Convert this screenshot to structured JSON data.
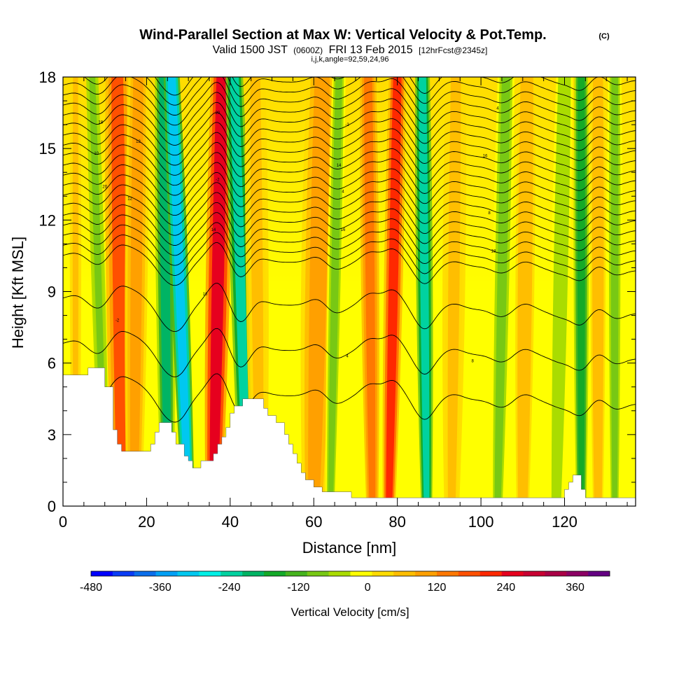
{
  "title": "Wind-Parallel Section at Max W: Vertical Velocity & Pot.Temp.",
  "copyright": "(C)",
  "subtitle": {
    "valid": "Valid 1500 JST",
    "utc": "(0600Z)",
    "date": "FRI 13 Feb 2015",
    "forecast": "[12hrFcst@2345z]"
  },
  "params": "i,j,k,angle=92,59,24,96",
  "colors": {
    "palette": [
      "#0000ff",
      "#0a3cf5",
      "#0a6eeb",
      "#00a0f5",
      "#00c8f0",
      "#00f0e6",
      "#00d2a0",
      "#00b464",
      "#14aa28",
      "#46b41e",
      "#78c814",
      "#aadc00",
      "#ffff00",
      "#ffdc00",
      "#ffbe00",
      "#ffa000",
      "#ff7800",
      "#ff5000",
      "#ff2800",
      "#e6001e",
      "#c80032",
      "#aa0046",
      "#8c0064",
      "#640082"
    ],
    "terrain": "#ffffff"
  },
  "chart_data": {
    "type": "heatmap",
    "xlabel": "Distance [nm]",
    "ylabel": "Height [Kft MSL]",
    "xlim": [
      0,
      137
    ],
    "ylim": [
      0,
      18
    ],
    "x_ticks": [
      0,
      20,
      40,
      60,
      80,
      100,
      120
    ],
    "y_ticks": [
      0,
      3,
      6,
      9,
      12,
      15,
      18
    ],
    "colorbar": {
      "label": "Vertical Velocity [cm/s]",
      "min": -480,
      "max": 420,
      "step": 37.5,
      "tick_values": [
        -480,
        -360,
        -240,
        -120,
        0,
        120,
        240,
        360
      ]
    },
    "vertical_velocity_bands": [
      {
        "x": 3,
        "x_top": 3,
        "width": 1.5,
        "w": 60
      },
      {
        "x": 10,
        "x_top": 7,
        "width": 1.8,
        "w": -100
      },
      {
        "x": 14,
        "x_top": 13,
        "width": 3.5,
        "w": 160
      },
      {
        "x": 17,
        "x_top": 18,
        "width": 3.0,
        "w": 90
      },
      {
        "x": 25,
        "x_top": 24,
        "width": 2.5,
        "w": -200
      },
      {
        "x": 30,
        "x_top": 26,
        "width": 2.4,
        "w": -330
      },
      {
        "x": 36,
        "x_top": 38,
        "width": 3.2,
        "w": 260
      },
      {
        "x": 44,
        "x_top": 41,
        "width": 2.6,
        "w": -230
      },
      {
        "x": 47,
        "x_top": 46,
        "width": 3.0,
        "w": 60
      },
      {
        "x": 60,
        "x_top": 62,
        "width": 4.5,
        "w": 90
      },
      {
        "x": 64,
        "x_top": 66,
        "width": 2.0,
        "w": -90
      },
      {
        "x": 74,
        "x_top": 73,
        "width": 2.4,
        "w": 150
      },
      {
        "x": 78,
        "x_top": 80,
        "width": 2.5,
        "w": 200
      },
      {
        "x": 87,
        "x_top": 86,
        "width": 2.2,
        "w": -240
      },
      {
        "x": 93,
        "x_top": 94,
        "width": 3.0,
        "w": 60
      },
      {
        "x": 104,
        "x_top": 106,
        "width": 2.5,
        "w": -80
      },
      {
        "x": 110,
        "x_top": 111,
        "width": 2.5,
        "w": 80
      },
      {
        "x": 118,
        "x_top": 120,
        "width": 2.5,
        "w": -60
      },
      {
        "x": 124,
        "x_top": 124,
        "width": 2.0,
        "w": -160
      },
      {
        "x": 128,
        "x_top": 128,
        "width": 2.0,
        "w": 80
      },
      {
        "x": 132,
        "x_top": 132,
        "width": 2.0,
        "w": -80
      }
    ],
    "terrain_height": [
      [
        0,
        5.5
      ],
      [
        6,
        5.5
      ],
      [
        6,
        5.8
      ],
      [
        10,
        5.8
      ],
      [
        10,
        5.0
      ],
      [
        12,
        5.0
      ],
      [
        12,
        3.2
      ],
      [
        13,
        3.2
      ],
      [
        13,
        2.6
      ],
      [
        14,
        2.6
      ],
      [
        14,
        2.3
      ],
      [
        21,
        2.3
      ],
      [
        21,
        2.6
      ],
      [
        22,
        2.6
      ],
      [
        22,
        3.1
      ],
      [
        23,
        3.1
      ],
      [
        23,
        3.5
      ],
      [
        26,
        3.5
      ],
      [
        26,
        3.1
      ],
      [
        27,
        3.1
      ],
      [
        27,
        2.6
      ],
      [
        29,
        2.6
      ],
      [
        29,
        2.1
      ],
      [
        30,
        2.1
      ],
      [
        30,
        1.9
      ],
      [
        31,
        1.9
      ],
      [
        31,
        1.6
      ],
      [
        33,
        1.6
      ],
      [
        33,
        1.9
      ],
      [
        36,
        1.9
      ],
      [
        36,
        2.2
      ],
      [
        37,
        2.2
      ],
      [
        37,
        2.6
      ],
      [
        38,
        2.6
      ],
      [
        38,
        2.9
      ],
      [
        39,
        2.9
      ],
      [
        39,
        3.3
      ],
      [
        40,
        3.3
      ],
      [
        40,
        3.9
      ],
      [
        41,
        3.9
      ],
      [
        41,
        4.2
      ],
      [
        43,
        4.2
      ],
      [
        43,
        4.5
      ],
      [
        48,
        4.5
      ],
      [
        48,
        4.1
      ],
      [
        49,
        4.1
      ],
      [
        49,
        3.8
      ],
      [
        51,
        3.8
      ],
      [
        51,
        3.5
      ],
      [
        53,
        3.5
      ],
      [
        53,
        3.0
      ],
      [
        54,
        3.0
      ],
      [
        54,
        2.6
      ],
      [
        55,
        2.6
      ],
      [
        55,
        2.2
      ],
      [
        56,
        2.2
      ],
      [
        56,
        1.8
      ],
      [
        57,
        1.8
      ],
      [
        57,
        1.4
      ],
      [
        58,
        1.4
      ],
      [
        58,
        1.1
      ],
      [
        60,
        1.1
      ],
      [
        60,
        0.8
      ],
      [
        62,
        0.8
      ],
      [
        62,
        0.6
      ],
      [
        69,
        0.6
      ],
      [
        69,
        0.35
      ],
      [
        120,
        0.35
      ],
      [
        120,
        0.7
      ],
      [
        121,
        0.7
      ],
      [
        121,
        1.0
      ],
      [
        122,
        1.0
      ],
      [
        122,
        1.3
      ],
      [
        124,
        1.3
      ],
      [
        124,
        0.7
      ],
      [
        125,
        0.7
      ],
      [
        125,
        0.35
      ],
      [
        137,
        0.35
      ]
    ],
    "pot_temp_contour_levels": [
      -2,
      0,
      2,
      4,
      6,
      8,
      10,
      12,
      14,
      16,
      18,
      20,
      22,
      24,
      26,
      28,
      30,
      32,
      34,
      36,
      38,
      40,
      42
    ],
    "contour_labels": [
      "-2",
      "4",
      "8",
      "10",
      "12",
      "14",
      "16",
      "18",
      "20"
    ]
  }
}
